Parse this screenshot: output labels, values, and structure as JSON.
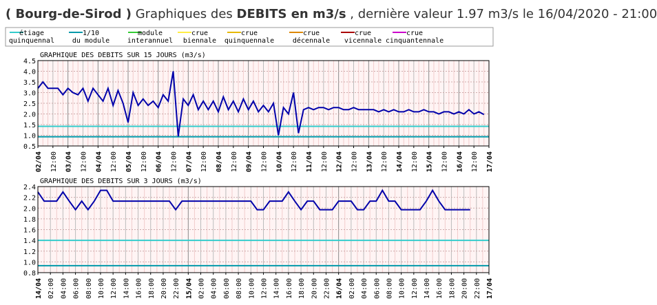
{
  "header": {
    "parts": [
      {
        "text": "( Bourg-de-Sirod )",
        "bold": true
      },
      {
        "text": "Graphiques des",
        "bold": false
      },
      {
        "text": "DEBITS en m3/s",
        "bold": true
      },
      {
        "text": ", dernière valeur 1.97 m3/s le 16/04/2020 - 21:00",
        "bold": false
      }
    ]
  },
  "legend": {
    "items": [
      {
        "line1": "étiage",
        "line2": "quinquennal",
        "color": "#33cccc"
      },
      {
        "line1": "1/10",
        "line2": "du module",
        "color": "#0099aa"
      },
      {
        "line1": "module",
        "line2": "interannuel",
        "color": "#33cc33"
      },
      {
        "line1": "crue",
        "line2": "biennale",
        "color": "#ffee44"
      },
      {
        "line1": "crue",
        "line2": "quinquennale",
        "color": "#e6b800"
      },
      {
        "line1": "crue",
        "line2": "décennale",
        "color": "#dd8800"
      },
      {
        "line1": "crue",
        "line2": "vicennale",
        "color": "#aa0000"
      },
      {
        "line1": "crue",
        "line2": "cinquantennale",
        "color": "#cc00cc"
      }
    ]
  },
  "chart_data": [
    {
      "type": "line",
      "title": "GRAPHIQUE DES DEBITS SUR 15 JOURS (m3/s)",
      "categories": [
        "02/04",
        null,
        null,
        "12:00",
        null,
        null,
        "03/04",
        null,
        null,
        "12:00",
        null,
        null,
        "04/04",
        null,
        null,
        "12:00",
        null,
        null,
        "05/04",
        null,
        null,
        "12:00",
        null,
        null,
        "06/04",
        null,
        null,
        "12:00",
        null,
        null,
        "07/04",
        null,
        null,
        "12:00",
        null,
        null,
        "08/04",
        null,
        null,
        "12:00",
        null,
        null,
        "09/04",
        null,
        null,
        "12:00",
        null,
        null,
        "10/04",
        null,
        null,
        "12:00",
        null,
        null,
        "11/04",
        null,
        null,
        "12:00",
        null,
        null,
        "12/04",
        null,
        null,
        "12:00",
        null,
        null,
        "13/04",
        null,
        null,
        "12:00",
        null,
        null,
        "14/04",
        null,
        null,
        "12:00",
        null,
        null,
        "15/04",
        null,
        null,
        "12:00",
        null,
        null,
        "16/04",
        null,
        null,
        "12:00",
        null,
        null,
        "17/04"
      ],
      "series": [
        {
          "color": "#0000aa",
          "values": [
            3.2,
            3.5,
            3.2,
            3.2,
            3.2,
            2.9,
            3.2,
            3.0,
            2.9,
            3.2,
            2.6,
            3.2,
            2.9,
            2.6,
            3.2,
            2.4,
            3.1,
            2.5,
            1.6,
            3.0,
            2.4,
            2.7,
            2.4,
            2.6,
            2.3,
            2.9,
            2.6,
            4.0,
            0.95,
            2.7,
            2.4,
            2.9,
            2.2,
            2.6,
            2.2,
            2.6,
            2.1,
            2.8,
            2.2,
            2.6,
            2.1,
            2.7,
            2.2,
            2.6,
            2.1,
            2.4,
            2.1,
            2.5,
            1.0,
            2.3,
            2.0,
            3.0,
            1.1,
            2.2,
            2.3,
            2.2,
            2.3,
            2.3,
            2.2,
            2.3,
            2.3,
            2.2,
            2.2,
            2.3,
            2.2,
            2.2,
            2.2,
            2.2,
            2.1,
            2.2,
            2.1,
            2.2,
            2.1,
            2.1,
            2.2,
            2.1,
            2.1,
            2.2,
            2.1,
            2.1,
            2.0,
            2.1,
            2.1,
            2.0,
            2.1,
            2.0,
            2.2,
            2.0,
            2.1,
            1.97,
            null
          ]
        }
      ],
      "thresholds": [
        {
          "value": 1.42,
          "color": "#33cccc"
        },
        {
          "value": 0.93,
          "color": "#0099aa"
        }
      ],
      "ylim": [
        0.5,
        4.5
      ],
      "yticks": [
        0.5,
        {
          "value": 1,
          "label": "1.0"
        },
        1.5,
        {
          "value": 2,
          "label": "2.0"
        },
        2.5,
        {
          "value": 3,
          "label": "3.0"
        },
        3.5,
        {
          "value": 4,
          "label": "4.0"
        },
        4.5
      ],
      "grid": true
    },
    {
      "type": "line",
      "title": "GRAPHIQUE DES DEBITS SUR 3 JOURS (m3/s)",
      "categories": [
        "14/04",
        null,
        "02:00",
        null,
        "04:00",
        null,
        "06:00",
        null,
        "08:00",
        null,
        "10:00",
        null,
        "12:00",
        null,
        "14:00",
        null,
        "16:00",
        null,
        "18:00",
        null,
        "20:00",
        null,
        "22:00",
        null,
        "15/04",
        null,
        "02:00",
        null,
        "04:00",
        null,
        "06:00",
        null,
        "08:00",
        null,
        "10:00",
        null,
        "12:00",
        null,
        "14:00",
        null,
        "16:00",
        null,
        "18:00",
        null,
        "20:00",
        null,
        "22:00",
        null,
        "16/04",
        null,
        "02:00",
        null,
        "04:00",
        null,
        "06:00",
        null,
        "08:00",
        null,
        "10:00",
        null,
        "12:00",
        null,
        "14:00",
        null,
        "16:00",
        null,
        "18:00",
        null,
        "20:00",
        null,
        "22:00",
        null,
        "17/04"
      ],
      "series": [
        {
          "color": "#0000aa",
          "values": [
            2.3,
            2.13,
            2.13,
            2.13,
            2.3,
            2.13,
            1.97,
            2.13,
            1.97,
            2.13,
            2.33,
            2.33,
            2.13,
            2.13,
            2.13,
            2.13,
            2.13,
            2.13,
            2.13,
            2.13,
            2.13,
            2.13,
            1.97,
            2.13,
            2.13,
            2.13,
            2.13,
            2.13,
            2.13,
            2.13,
            2.13,
            2.13,
            2.13,
            2.13,
            2.13,
            1.97,
            1.97,
            2.13,
            2.13,
            2.13,
            2.3,
            2.13,
            1.97,
            2.13,
            2.13,
            1.97,
            1.97,
            1.97,
            2.13,
            2.13,
            2.13,
            1.97,
            1.97,
            2.13,
            2.13,
            2.33,
            2.13,
            2.13,
            1.97,
            1.97,
            1.97,
            1.97,
            2.13,
            2.33,
            2.13,
            1.97,
            1.97,
            1.97,
            1.97,
            1.97,
            null,
            null,
            null
          ]
        }
      ],
      "thresholds": [
        {
          "value": 1.4,
          "color": "#33cccc"
        },
        {
          "value": 0.93,
          "color": "#0099aa"
        }
      ],
      "ylim": [
        0.8,
        2.4
      ],
      "yticks": [
        0.8,
        {
          "value": 1,
          "label": "1.0"
        },
        1.2,
        1.4,
        1.6,
        1.8,
        {
          "value": 2,
          "label": "2.0"
        },
        2.2,
        2.4
      ],
      "grid": true
    }
  ]
}
